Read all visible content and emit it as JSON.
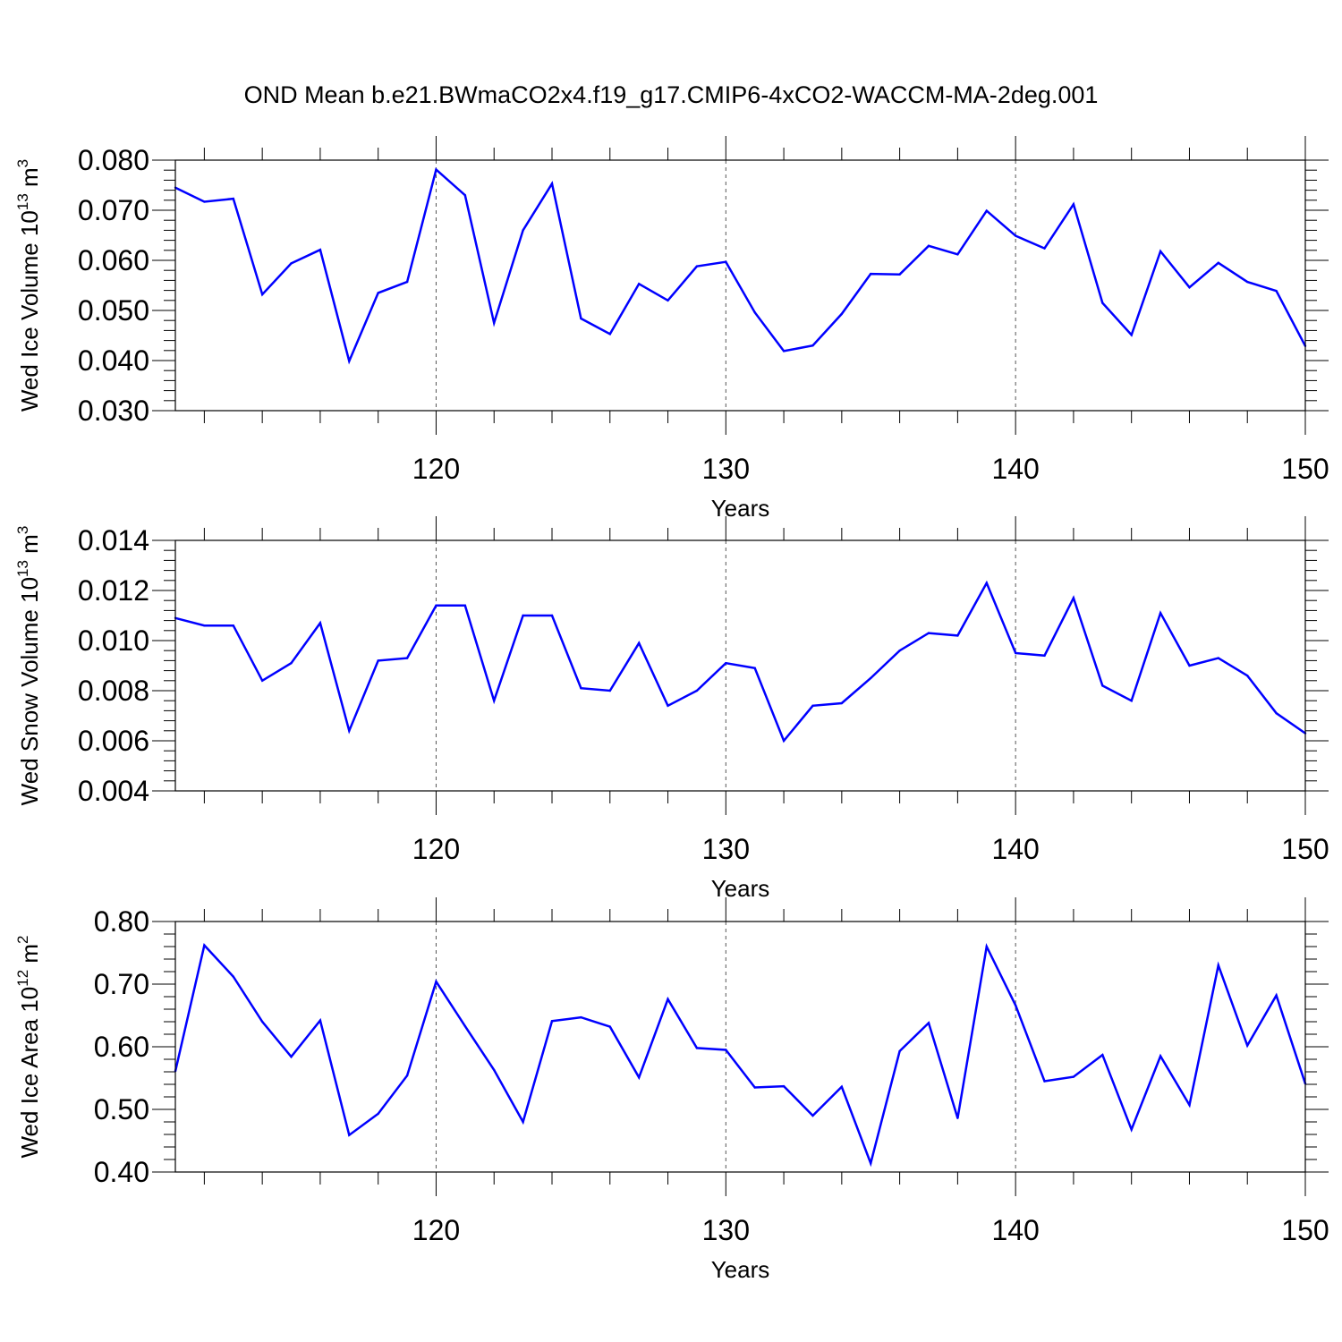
{
  "title": "OND Mean b.e21.BWmaCO2x4.f19_g17.CMIP6-4xCO2-WACCM-MA-2deg.001",
  "series_color": "#0000ff",
  "chart_data": [
    {
      "type": "line",
      "title": "OND Mean b.e21.BWmaCO2x4.f19_g17.CMIP6-4xCO2-WACCM-MA-2deg.001",
      "ylabel": {
        "prefix": "Wed Ice Volume 10",
        "exp": "13",
        "unit": " m",
        "unit_exp": "3"
      },
      "xlabel": "Years",
      "xlim": [
        111,
        150
      ],
      "ylim": [
        0.03,
        0.08
      ],
      "y_ticks": [
        "0.030",
        "0.040",
        "0.050",
        "0.060",
        "0.070",
        "0.080"
      ],
      "x_ticks": [
        "120",
        "130",
        "140",
        "150"
      ],
      "grid_x": [
        120,
        130,
        140
      ],
      "x": [
        111,
        112,
        113,
        114,
        115,
        116,
        117,
        118,
        119,
        120,
        121,
        122,
        123,
        124,
        125,
        126,
        127,
        128,
        129,
        130,
        131,
        132,
        133,
        134,
        135,
        136,
        137,
        138,
        139,
        140,
        141,
        142,
        143,
        144,
        145,
        146,
        147,
        148,
        149,
        150
      ],
      "values": [
        0.0745,
        0.0717,
        0.0723,
        0.0532,
        0.0594,
        0.0621,
        0.0399,
        0.0535,
        0.0557,
        0.0781,
        0.073,
        0.0475,
        0.066,
        0.0753,
        0.0484,
        0.0453,
        0.0553,
        0.052,
        0.0588,
        0.0597,
        0.0496,
        0.0419,
        0.043,
        0.0493,
        0.0573,
        0.0572,
        0.0629,
        0.0612,
        0.0699,
        0.0649,
        0.0624,
        0.0712,
        0.0515,
        0.0451,
        0.0618,
        0.0546,
        0.0595,
        0.0557,
        0.0539,
        0.0429
      ]
    },
    {
      "type": "line",
      "ylabel": {
        "prefix": "Wed Snow Volume 10",
        "exp": "13",
        "unit": " m",
        "unit_exp": "3"
      },
      "xlabel": "Years",
      "xlim": [
        111,
        150
      ],
      "ylim": [
        0.004,
        0.014
      ],
      "y_ticks": [
        "0.004",
        "0.006",
        "0.008",
        "0.010",
        "0.012",
        "0.014"
      ],
      "x_ticks": [
        "120",
        "130",
        "140",
        "150"
      ],
      "grid_x": [
        120,
        130,
        140
      ],
      "x": [
        111,
        112,
        113,
        114,
        115,
        116,
        117,
        118,
        119,
        120,
        121,
        122,
        123,
        124,
        125,
        126,
        127,
        128,
        129,
        130,
        131,
        132,
        133,
        134,
        135,
        136,
        137,
        138,
        139,
        140,
        141,
        142,
        143,
        144,
        145,
        146,
        147,
        148,
        149,
        150
      ],
      "values": [
        0.0109,
        0.0106,
        0.0106,
        0.0084,
        0.0091,
        0.0107,
        0.0064,
        0.0092,
        0.0093,
        0.0114,
        0.0114,
        0.0076,
        0.011,
        0.011,
        0.0081,
        0.008,
        0.0099,
        0.0074,
        0.008,
        0.0091,
        0.0089,
        0.006,
        0.0074,
        0.0075,
        0.0085,
        0.0096,
        0.0103,
        0.0102,
        0.0123,
        0.0095,
        0.0094,
        0.0117,
        0.0082,
        0.0076,
        0.0111,
        0.009,
        0.0093,
        0.0086,
        0.0071,
        0.0063
      ]
    },
    {
      "type": "line",
      "ylabel": {
        "prefix": "Wed Ice Area 10",
        "exp": "12",
        "unit": " m",
        "unit_exp": "2"
      },
      "xlabel": "Years",
      "xlim": [
        111,
        150
      ],
      "ylim": [
        0.4,
        0.8
      ],
      "y_ticks": [
        "0.40",
        "0.50",
        "0.60",
        "0.70",
        "0.80"
      ],
      "x_ticks": [
        "120",
        "130",
        "140",
        "150"
      ],
      "grid_x": [
        120,
        130,
        140
      ],
      "x": [
        111,
        112,
        113,
        114,
        115,
        116,
        117,
        118,
        119,
        120,
        121,
        122,
        123,
        124,
        125,
        126,
        127,
        128,
        129,
        130,
        131,
        132,
        133,
        134,
        135,
        136,
        137,
        138,
        139,
        140,
        141,
        142,
        143,
        144,
        145,
        146,
        147,
        148,
        149,
        150
      ],
      "values": [
        0.561,
        0.762,
        0.712,
        0.64,
        0.584,
        0.642,
        0.459,
        0.493,
        0.554,
        0.704,
        0.633,
        0.563,
        0.48,
        0.641,
        0.647,
        0.632,
        0.551,
        0.676,
        0.598,
        0.595,
        0.535,
        0.537,
        0.49,
        0.536,
        0.414,
        0.593,
        0.638,
        0.486,
        0.76,
        0.666,
        0.545,
        0.552,
        0.587,
        0.468,
        0.585,
        0.507,
        0.73,
        0.602,
        0.682,
        0.541
      ]
    }
  ]
}
